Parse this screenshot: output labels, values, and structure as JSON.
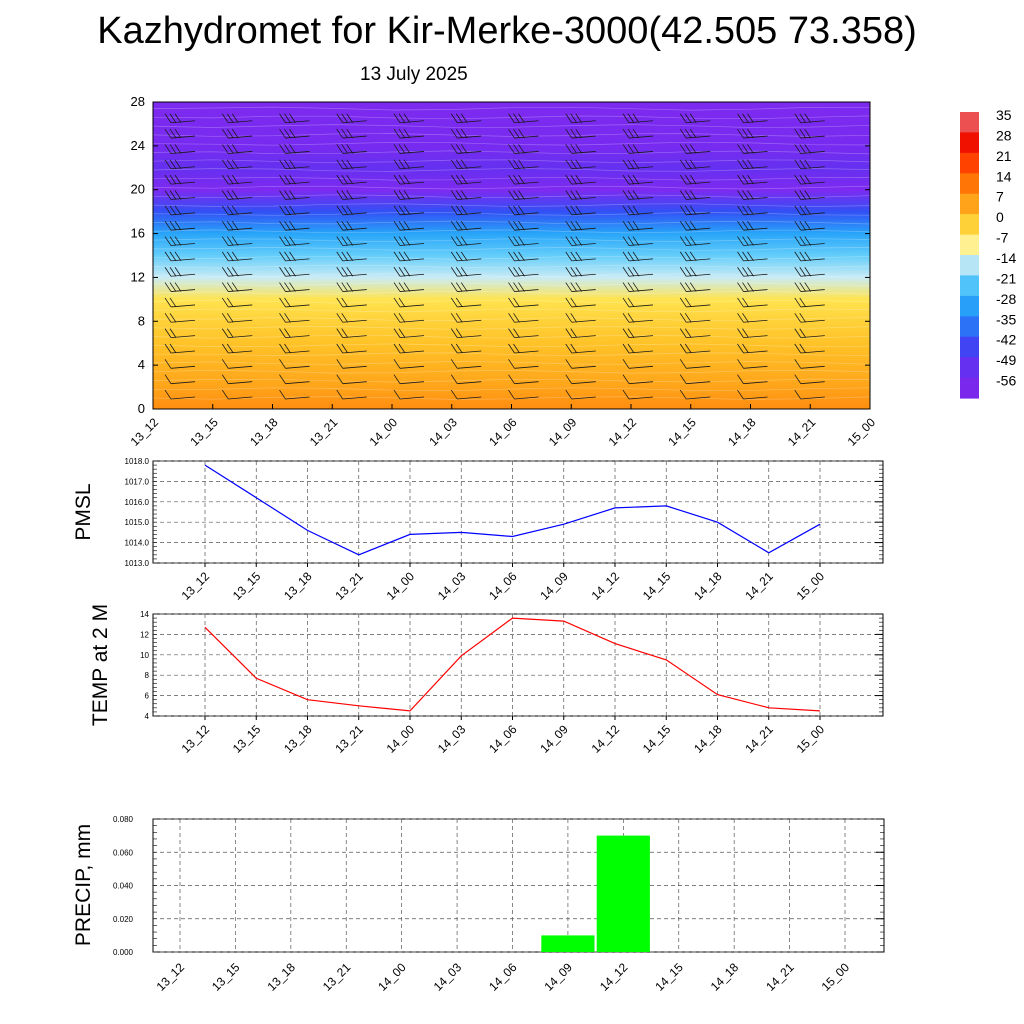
{
  "title": "Kazhydromet for Kir-Merke-3000(42.505 73.358)",
  "subtitle": "13 July 2025",
  "colorbar": {
    "labels": [
      "35",
      "28",
      "21",
      "14",
      "7",
      "0",
      "-7",
      "-14",
      "-21",
      "-28",
      "-35",
      "-42",
      "-49",
      "-56"
    ]
  },
  "chart_data": [
    {
      "type": "heatmap",
      "title": "",
      "x": [
        "13_12",
        "13_15",
        "13_18",
        "13_21",
        "14_00",
        "14_03",
        "14_06",
        "14_09",
        "14_12",
        "14_15",
        "14_18",
        "14_21",
        "15_00"
      ],
      "y_ticks": [
        0,
        4,
        8,
        12,
        16,
        20,
        24,
        28
      ],
      "ylim": [
        0,
        28
      ],
      "vertical_profile": [
        {
          "level": 0,
          "value": 7
        },
        {
          "level": 2,
          "value": 4
        },
        {
          "level": 4,
          "value": 2
        },
        {
          "level": 6,
          "value": 0
        },
        {
          "level": 8,
          "value": -3
        },
        {
          "level": 10,
          "value": -7
        },
        {
          "level": 12,
          "value": -16
        },
        {
          "level": 14,
          "value": -22
        },
        {
          "level": 16,
          "value": -30
        },
        {
          "level": 18,
          "value": -42
        },
        {
          "level": 20,
          "value": -56
        },
        {
          "level": 22,
          "value": -52
        },
        {
          "level": 24,
          "value": -55
        },
        {
          "level": 28,
          "value": -57
        }
      ],
      "overlay": "wind barbs"
    },
    {
      "type": "line",
      "ylabel": "PMSL",
      "x": [
        "13_12",
        "13_15",
        "13_18",
        "13_21",
        "14_00",
        "14_03",
        "14_06",
        "14_09",
        "14_12",
        "14_15",
        "14_18",
        "14_21",
        "15_00"
      ],
      "series": [
        {
          "color": "#0000ff",
          "values": [
            1017.8,
            1016.2,
            1014.6,
            1013.4,
            1014.4,
            1014.5,
            1014.3,
            1014.9,
            1015.7,
            1015.8,
            1015.0,
            1013.5,
            1014.9
          ]
        }
      ],
      "ylim": [
        1013.0,
        1018.0
      ],
      "y_ticks": [
        "1013.0",
        "1014.0",
        "1015.0",
        "1016.0",
        "1017.0",
        "1018.0"
      ],
      "grid": true
    },
    {
      "type": "line",
      "ylabel": "TEMP at 2 M",
      "x": [
        "13_12",
        "13_15",
        "13_18",
        "13_21",
        "14_00",
        "14_03",
        "14_06",
        "14_09",
        "14_12",
        "14_15",
        "14_18",
        "14_21",
        "15_00"
      ],
      "series": [
        {
          "color": "#ff0000",
          "values": [
            12.7,
            7.7,
            5.6,
            5.0,
            4.5,
            9.9,
            13.6,
            13.3,
            11.1,
            9.5,
            6.1,
            4.8,
            4.5
          ]
        }
      ],
      "ylim": [
        4,
        14
      ],
      "y_ticks": [
        "4",
        "6",
        "8",
        "10",
        "12",
        "14"
      ],
      "grid": true
    },
    {
      "type": "bar",
      "ylabel": "PRECIP, mm",
      "categories": [
        "13_12",
        "13_15",
        "13_18",
        "13_21",
        "14_00",
        "14_03",
        "14_06",
        "14_09",
        "14_12",
        "14_15",
        "14_18",
        "14_21",
        "15_00"
      ],
      "values": [
        0,
        0,
        0,
        0,
        0,
        0,
        0,
        0.01,
        0.07,
        0,
        0,
        0,
        0
      ],
      "color": "#00ff00",
      "ylim": [
        0,
        0.08
      ],
      "y_ticks": [
        "0.000",
        "0.020",
        "0.040",
        "0.060",
        "0.080"
      ],
      "grid": true
    }
  ]
}
